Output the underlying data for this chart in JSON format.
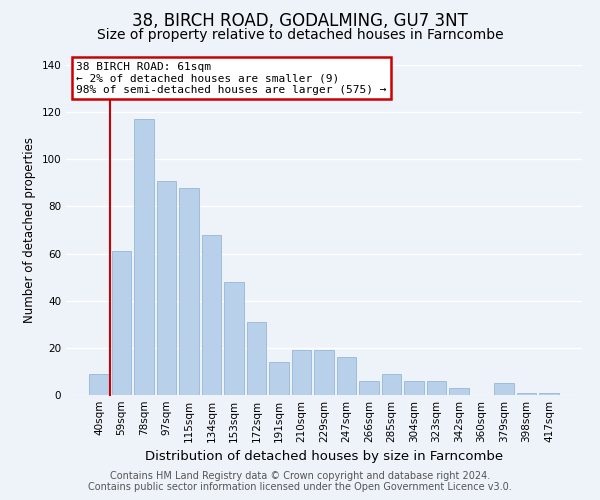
{
  "title": "38, BIRCH ROAD, GODALMING, GU7 3NT",
  "subtitle": "Size of property relative to detached houses in Farncombe",
  "xlabel": "Distribution of detached houses by size in Farncombe",
  "ylabel": "Number of detached properties",
  "bar_labels": [
    "40sqm",
    "59sqm",
    "78sqm",
    "97sqm",
    "115sqm",
    "134sqm",
    "153sqm",
    "172sqm",
    "191sqm",
    "210sqm",
    "229sqm",
    "247sqm",
    "266sqm",
    "285sqm",
    "304sqm",
    "323sqm",
    "342sqm",
    "360sqm",
    "379sqm",
    "398sqm",
    "417sqm"
  ],
  "bar_heights": [
    9,
    61,
    117,
    91,
    88,
    68,
    48,
    31,
    14,
    19,
    19,
    16,
    6,
    9,
    6,
    6,
    3,
    0,
    5,
    1,
    1
  ],
  "bar_color": "#b8d0ea",
  "marker_color": "#cc0000",
  "ylim": [
    0,
    140
  ],
  "yticks": [
    0,
    20,
    40,
    60,
    80,
    100,
    120,
    140
  ],
  "annotation_title": "38 BIRCH ROAD: 61sqm",
  "annotation_line1": "← 2% of detached houses are smaller (9)",
  "annotation_line2": "98% of semi-detached houses are larger (575) →",
  "annotation_box_color": "#ffffff",
  "annotation_border_color": "#cc0000",
  "footer_line1": "Contains HM Land Registry data © Crown copyright and database right 2024.",
  "footer_line2": "Contains public sector information licensed under the Open Government Licence v3.0.",
  "background_color": "#eef2f9",
  "grid_color": "#ffffff",
  "title_fontsize": 12,
  "subtitle_fontsize": 10,
  "xlabel_fontsize": 9.5,
  "ylabel_fontsize": 8.5,
  "tick_fontsize": 7.5,
  "annotation_fontsize": 8,
  "footer_fontsize": 7
}
